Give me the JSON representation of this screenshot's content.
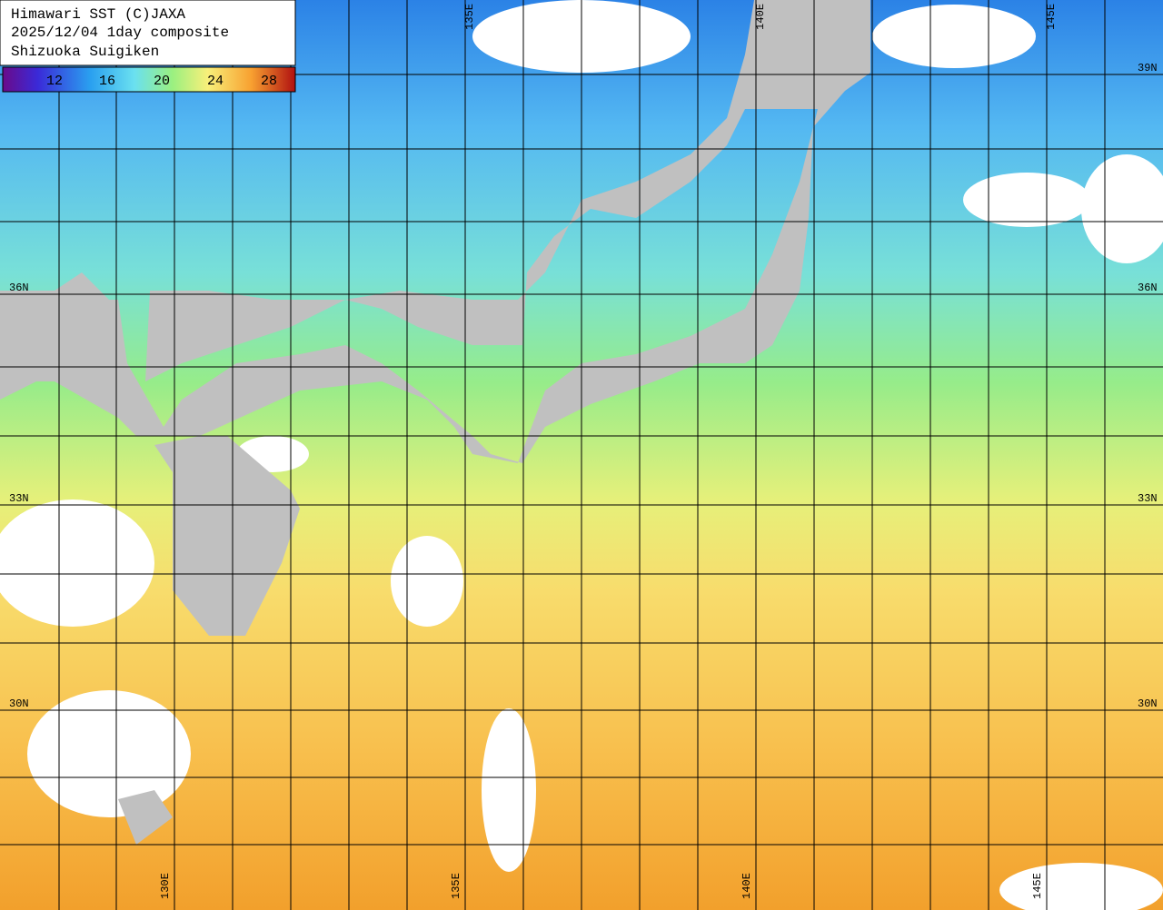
{
  "header": {
    "lines": [
      "Himawari SST (C)JAXA",
      "2025/12/04 1day composite",
      "Shizuoka Suigiken"
    ]
  },
  "colorbar": {
    "labels": [
      "12",
      "16",
      "20",
      "24",
      "28"
    ]
  },
  "grid": {
    "latitudes": [
      "39N",
      "36N",
      "33N",
      "30N"
    ],
    "longitudes": [
      "130E",
      "135E",
      "140E",
      "145E"
    ]
  }
}
